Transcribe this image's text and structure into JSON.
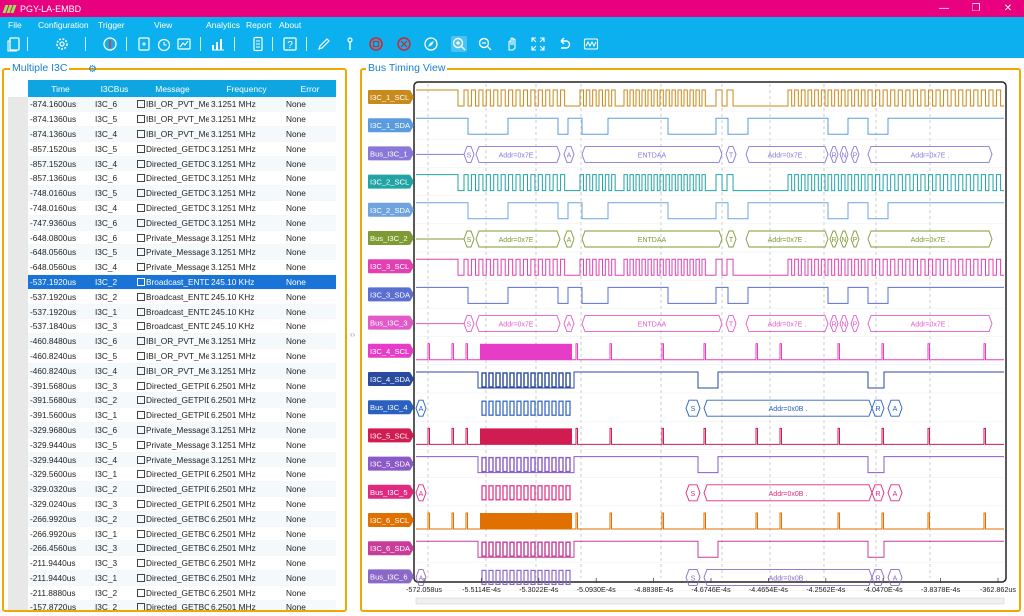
{
  "app": {
    "title": "PGY-LA-EMBD"
  },
  "menu": [
    "File",
    "Configuration",
    "Trigger",
    "View",
    "Analytics",
    "Report",
    "About"
  ],
  "toolbar_icons": [
    "new-file-icon",
    "settings-icon",
    "trigger-icon",
    "export-icon",
    "timer-icon",
    "graph-icon",
    "chart-icon",
    "report-icon",
    "help-icon",
    "pen-icon",
    "probe-icon",
    "stop-icon",
    "clear-icon",
    "compass-icon",
    "zoom-in-icon",
    "zoom-out-icon",
    "pan-icon",
    "fit-icon",
    "undo-icon",
    "waveform-icon"
  ],
  "left_panel": {
    "title": "Multiple I3C"
  },
  "right_panel": {
    "title": "Bus Timing View"
  },
  "table": {
    "headers": [
      "Time",
      "I3CBus",
      "Message",
      "Frequency",
      "Error"
    ],
    "selected_index": 13,
    "rows": [
      [
        "-874.1600us",
        "I3C_6",
        "IBI_OR_PVT_Mess",
        "3.1251 MHz",
        "None"
      ],
      [
        "-874.1360us",
        "I3C_5",
        "IBI_OR_PVT_Mess",
        "3.1251 MHz",
        "None"
      ],
      [
        "-874.1360us",
        "I3C_4",
        "IBI_OR_PVT_Mess",
        "3.1251 MHz",
        "None"
      ],
      [
        "-857.1520us",
        "I3C_5",
        "Directed_GETDCR",
        "3.1251 MHz",
        "None"
      ],
      [
        "-857.1520us",
        "I3C_4",
        "Directed_GETDCR",
        "3.1251 MHz",
        "None"
      ],
      [
        "-857.1360us",
        "I3C_6",
        "Directed_GETDCR",
        "3.1251 MHz",
        "None"
      ],
      [
        "-748.0160us",
        "I3C_5",
        "Directed_GETDCR",
        "3.1251 MHz",
        "None"
      ],
      [
        "-748.0160us",
        "I3C_4",
        "Directed_GETDCR",
        "3.1251 MHz",
        "None"
      ],
      [
        "-747.9360us",
        "I3C_6",
        "Directed_GETDCR",
        "3.1251 MHz",
        "None"
      ],
      [
        "-648.0800us",
        "I3C_6",
        "Private_Message",
        "3.1251 MHz",
        "None"
      ],
      [
        "-648.0560us",
        "I3C_5",
        "Private_Message",
        "3.1251 MHz",
        "None"
      ],
      [
        "-648.0560us",
        "I3C_4",
        "Private_Message",
        "3.1251 MHz",
        "None"
      ],
      [
        "-537.1920us",
        "I3C_2",
        "Broadcast_ENTDA",
        "245.10 KHz",
        "None"
      ],
      [
        "-537.1920us",
        "I3C_2",
        "Broadcast_ENTDA",
        "245.10 KHz",
        "None"
      ],
      [
        "-537.1920us",
        "I3C_1",
        "Broadcast_ENTDA",
        "245.10 KHz",
        "None"
      ],
      [
        "-537.1840us",
        "I3C_3",
        "Broadcast_ENTDA",
        "245.10 KHz",
        "None"
      ],
      [
        "-460.8480us",
        "I3C_6",
        "IBI_OR_PVT_Mess",
        "3.1251 MHz",
        "None"
      ],
      [
        "-460.8240us",
        "I3C_5",
        "IBI_OR_PVT_Mess",
        "3.1251 MHz",
        "None"
      ],
      [
        "-460.8240us",
        "I3C_4",
        "IBI_OR_PVT_Mess",
        "3.1251 MHz",
        "None"
      ],
      [
        "-391.5680us",
        "I3C_3",
        "Directed_GETPID",
        "6.2501 MHz",
        "None"
      ],
      [
        "-391.5680us",
        "I3C_2",
        "Directed_GETPID",
        "6.2501 MHz",
        "None"
      ],
      [
        "-391.5600us",
        "I3C_1",
        "Directed_GETPID",
        "6.2501 MHz",
        "None"
      ],
      [
        "-329.9680us",
        "I3C_6",
        "Private_Message",
        "3.1251 MHz",
        "None"
      ],
      [
        "-329.9440us",
        "I3C_5",
        "Private_Message",
        "3.1251 MHz",
        "None"
      ],
      [
        "-329.9440us",
        "I3C_4",
        "Private_Message",
        "3.1251 MHz",
        "None"
      ],
      [
        "-329.5600us",
        "I3C_1",
        "Directed_GETPID",
        "6.2501 MHz",
        "None"
      ],
      [
        "-329.0320us",
        "I3C_2",
        "Directed_GETPID",
        "6.2501 MHz",
        "None"
      ],
      [
        "-329.0240us",
        "I3C_3",
        "Directed_GETPID",
        "6.2501 MHz",
        "None"
      ],
      [
        "-266.9920us",
        "I3C_2",
        "Directed_GETBCR",
        "6.2501 MHz",
        "None"
      ],
      [
        "-266.9920us",
        "I3C_1",
        "Directed_GETBCR",
        "6.2501 MHz",
        "None"
      ],
      [
        "-266.4560us",
        "I3C_3",
        "Directed_GETBCR",
        "6.2501 MHz",
        "None"
      ],
      [
        "-211.9440us",
        "I3C_3",
        "Directed_GETBCR",
        "6.2501 MHz",
        "None"
      ],
      [
        "-211.9440us",
        "I3C_1",
        "Directed_GETBCR",
        "6.2501 MHz",
        "None"
      ],
      [
        "-211.8880us",
        "I3C_2",
        "Directed_GETBCR",
        "6.2501 MHz",
        "None"
      ],
      [
        "-157.8720us",
        "I3C_2",
        "Directed_GETBCR",
        "6.2501 MHz",
        "None"
      ],
      [
        "-157.8720us",
        "I3C_2",
        "Directed_GETBCR",
        "6.2501 MHz",
        "None"
      ]
    ]
  },
  "timing": {
    "channels": [
      {
        "label": "I3C_1_SCL",
        "type": "scl",
        "group": "a",
        "color": "#c88a1a"
      },
      {
        "label": "I3C_1_SDA",
        "type": "sda",
        "group": "a",
        "color": "#5b9be0"
      },
      {
        "label": "Bus_I3C_1",
        "type": "bus",
        "group": "a",
        "color": "#8a78d8"
      },
      {
        "label": "I3C_2_SCL",
        "type": "scl",
        "group": "a",
        "color": "#22a4a4"
      },
      {
        "label": "I3C_2_SDA",
        "type": "sda",
        "group": "a",
        "color": "#6fa3e0"
      },
      {
        "label": "Bus_I3C_2",
        "type": "bus",
        "group": "a",
        "color": "#7e9a32"
      },
      {
        "label": "I3C_3_SCL",
        "type": "scl",
        "group": "a",
        "color": "#e040b0"
      },
      {
        "label": "I3C_3_SDA",
        "type": "sda",
        "group": "a",
        "color": "#5a6fd0"
      },
      {
        "label": "Bus_I3C_3",
        "type": "bus",
        "group": "a",
        "color": "#e25ac8"
      },
      {
        "label": "I3C_4_SCL",
        "type": "scl",
        "group": "b",
        "color": "#e63cc8"
      },
      {
        "label": "I3C_4_SDA",
        "type": "sda",
        "group": "b",
        "color": "#2a4aa0"
      },
      {
        "label": "Bus_I3C_4",
        "type": "bus",
        "group": "b",
        "color": "#2a60c0"
      },
      {
        "label": "I3C_5_SCL",
        "type": "scl",
        "group": "b",
        "color": "#d01c50"
      },
      {
        "label": "I3C_5_SDA",
        "type": "sda",
        "group": "b",
        "color": "#8a5ac8"
      },
      {
        "label": "Bus_I3C_5",
        "type": "bus",
        "group": "b",
        "color": "#e02a80"
      },
      {
        "label": "I3C_6_SCL",
        "type": "scl",
        "group": "b",
        "color": "#e07000"
      },
      {
        "label": "I3C_6_SDA",
        "type": "sda",
        "group": "b",
        "color": "#c83c9a"
      },
      {
        "label": "Bus_I3C_6",
        "type": "bus",
        "group": "b",
        "color": "#8a68c8"
      }
    ],
    "bus_text_a": {
      "start": "S",
      "addr": "Addr=0x7E",
      "cmd": "ENTDAA",
      "ack": "A",
      "t": "T",
      "r": "R",
      "n": "N",
      "p": "P"
    },
    "bus_text_b": {
      "start": "S",
      "addr": "Addr=0x0B",
      "ack": "A",
      "r": "R"
    },
    "x_ticks": [
      "-572.058us",
      "-5.5114E-4s",
      "-5.3022E-4s",
      "-5.0930E-4s",
      "-4.8838E-4s",
      "-4.6746E-4s",
      "-4.4654E-4s",
      "-4.2562E-4s",
      "-4.0470E-4s",
      "-3.8378E-4s",
      "-362.862us"
    ]
  }
}
